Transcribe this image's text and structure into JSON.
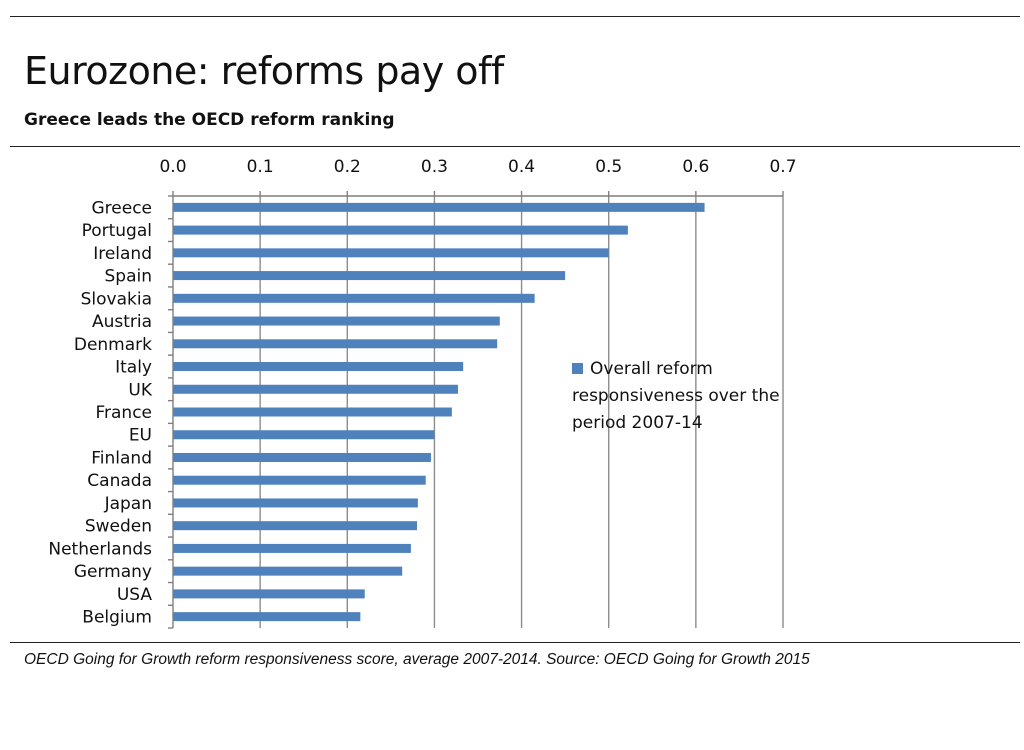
{
  "title": "Eurozone: reforms pay off",
  "subtitle": "Greece leads the OECD reform ranking",
  "footnote": "OECD Going for Growth reform responsiveness score, average 2007-2014. Source: OECD Going for Growth 2015",
  "colors": {
    "bar": "#4f81bd",
    "grid": "#8c8c8c",
    "axis": "#7f7f7f"
  },
  "chart_data": {
    "type": "bar",
    "orientation": "horizontal",
    "categories": [
      "Greece",
      "Portugal",
      "Ireland",
      "Spain",
      "Slovakia",
      "Austria",
      "Denmark",
      "Italy",
      "UK",
      "France",
      "EU",
      "Finland",
      "Canada",
      "Japan",
      "Sweden",
      "Netherlands",
      "Germany",
      "USA",
      "Belgium"
    ],
    "series": [
      {
        "name": "Overall reform responsiveness over the period 2007-14",
        "values": [
          0.61,
          0.522,
          0.5,
          0.45,
          0.415,
          0.375,
          0.372,
          0.333,
          0.327,
          0.32,
          0.3,
          0.296,
          0.29,
          0.281,
          0.28,
          0.273,
          0.263,
          0.22,
          0.215
        ]
      }
    ],
    "xlim": [
      0,
      0.7
    ],
    "xticks": [
      "0.0",
      "0.1",
      "0.2",
      "0.3",
      "0.4",
      "0.5",
      "0.6",
      "0.7"
    ],
    "xaxis_position": "top",
    "grid": true,
    "legend_position": "inside-right"
  }
}
